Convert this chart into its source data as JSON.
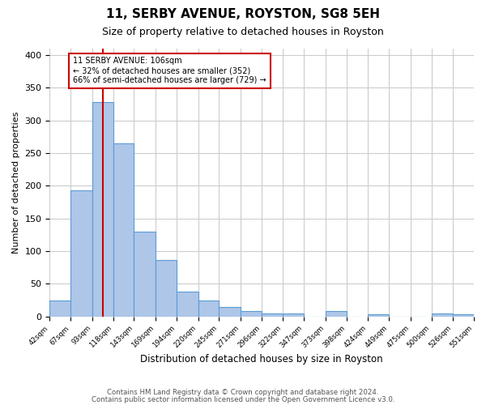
{
  "title": "11, SERBY AVENUE, ROYSTON, SG8 5EH",
  "subtitle": "Size of property relative to detached houses in Royston",
  "xlabel": "Distribution of detached houses by size in Royston",
  "ylabel": "Number of detached properties",
  "bin_edges": [
    42,
    67,
    93,
    118,
    143,
    169,
    194,
    220,
    245,
    271,
    296,
    322,
    347,
    373,
    398,
    424,
    449,
    475,
    500,
    526,
    551
  ],
  "bar_heights": [
    25,
    193,
    328,
    265,
    130,
    86,
    38,
    25,
    15,
    8,
    4,
    4,
    0,
    8,
    0,
    3,
    0,
    0,
    4,
    3
  ],
  "bar_color": "#aec6e8",
  "bar_edge_color": "#5b9bd5",
  "vline_x": 106,
  "vline_color": "#cc0000",
  "annotation_title": "11 SERBY AVENUE: 106sqm",
  "annotation_line1": "← 32% of detached houses are smaller (352)",
  "annotation_line2": "66% of semi-detached houses are larger (729) →",
  "annotation_box_color": "#cc0000",
  "ylim": [
    0,
    410
  ],
  "yticks": [
    0,
    50,
    100,
    150,
    200,
    250,
    300,
    350,
    400
  ],
  "xtick_labels": [
    "42sqm",
    "67sqm",
    "93sqm",
    "118sqm",
    "143sqm",
    "169sqm",
    "194sqm",
    "220sqm",
    "245sqm",
    "271sqm",
    "296sqm",
    "322sqm",
    "347sqm",
    "373sqm",
    "398sqm",
    "424sqm",
    "449sqm",
    "475sqm",
    "500sqm",
    "526sqm",
    "551sqm"
  ],
  "footnote1": "Contains HM Land Registry data © Crown copyright and database right 2024.",
  "footnote2": "Contains public sector information licensed under the Open Government Licence v3.0.",
  "background_color": "#ffffff",
  "grid_color": "#cccccc"
}
